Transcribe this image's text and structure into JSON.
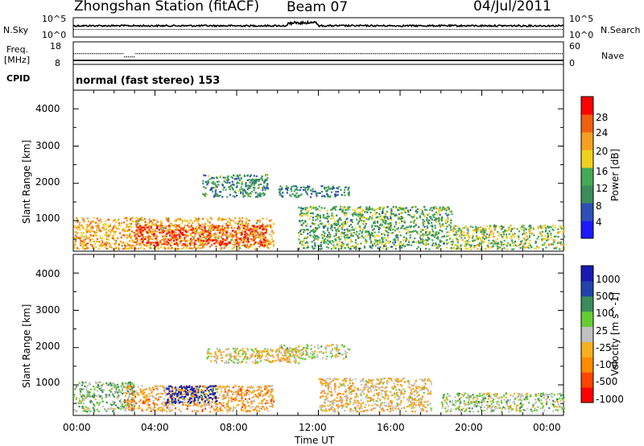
{
  "header": {
    "station": "Zhongshan Station (fitACF)",
    "beam": "Beam 07",
    "date": "04/Jul/2011"
  },
  "nsky_panel": {
    "left_label": "N.Sky",
    "right_label": "N.Search",
    "tick_top": "10^5",
    "tick_bottom": "10^0"
  },
  "freq_panel": {
    "left_label_1": "Freq.",
    "left_label_2": "[MHz]",
    "right_label": "Nave",
    "tick_left_top": "18",
    "tick_left_bottom": "8",
    "tick_right_top": "60",
    "tick_right_bottom": "0"
  },
  "cpid_panel": {
    "label": "CPID",
    "mode": "normal (fast stereo) 153"
  },
  "x_axis": {
    "label": "Time UT",
    "ticks": [
      "00:00",
      "04:00",
      "08:00",
      "12:00",
      "16:00",
      "20:00",
      "00:00"
    ]
  },
  "chart_data": [
    {
      "type": "heatmap",
      "title": "",
      "xlabel": "Time UT",
      "ylabel": "Slant Range [km]",
      "ylim": [
        180,
        4500
      ],
      "xlim": [
        "00:00",
        "24:00"
      ],
      "yticks": [
        "1000",
        "2000",
        "3000",
        "4000"
      ],
      "colorbar": {
        "label": "Power [dB]",
        "ticks": [
          "28",
          "24",
          "20",
          "16",
          "12",
          "8",
          "4"
        ],
        "range": [
          0,
          30
        ],
        "colors": [
          "#1a1aff",
          "#2f4fb8",
          "#3c8c5a",
          "#44aa55",
          "#f0d020",
          "#f5a020",
          "#f06010",
          "#ff0000"
        ]
      },
      "regions": [
        {
          "t": [
            0.0,
            9.8
          ],
          "range_km": [
            250,
            1100
          ],
          "value": 20
        },
        {
          "t": [
            3.0,
            9.5
          ],
          "range_km": [
            350,
            900
          ],
          "value": 26
        },
        {
          "t": [
            6.3,
            9.5
          ],
          "range_km": [
            1650,
            2250
          ],
          "value": 10
        },
        {
          "t": [
            10.0,
            13.5
          ],
          "range_km": [
            1650,
            1950
          ],
          "value": 9
        },
        {
          "t": [
            11.0,
            18.5
          ],
          "range_km": [
            250,
            1400
          ],
          "value": 12
        },
        {
          "t": [
            18.5,
            24.0
          ],
          "range_km": [
            250,
            900
          ],
          "value": 15
        }
      ]
    },
    {
      "type": "heatmap",
      "title": "",
      "xlabel": "Time UT",
      "ylabel": "Slant Range [km]",
      "ylim": [
        180,
        4500
      ],
      "xlim": [
        "00:00",
        "24:00"
      ],
      "yticks": [
        "1000",
        "2000",
        "3000",
        "4000"
      ],
      "colorbar": {
        "label": "Velocity [m s^-1]",
        "ticks": [
          "1000",
          "500",
          "100",
          "25",
          "-25",
          "-100",
          "-500",
          "-1000"
        ],
        "range": [
          -1000,
          1000
        ],
        "colors": [
          "#ff0000",
          "#ff4500",
          "#ff8c00",
          "#f5b020",
          "#c0c0c0",
          "#66cc33",
          "#3a8c5a",
          "#2244aa",
          "#1a1ab0"
        ]
      },
      "regions": [
        {
          "t": [
            0.0,
            3.0
          ],
          "range_km": [
            300,
            1100
          ],
          "value": 200
        },
        {
          "t": [
            2.5,
            9.8
          ],
          "range_km": [
            300,
            1000
          ],
          "value": -300
        },
        {
          "t": [
            4.5,
            7.0
          ],
          "range_km": [
            500,
            1000
          ],
          "value": 800
        },
        {
          "t": [
            10.0,
            13.5
          ],
          "range_km": [
            1700,
            2100
          ],
          "value": 0
        },
        {
          "t": [
            6.5,
            11.0
          ],
          "range_km": [
            1600,
            2000
          ],
          "value": -80
        },
        {
          "t": [
            12.0,
            17.5
          ],
          "range_km": [
            300,
            1200
          ],
          "value": -200
        },
        {
          "t": [
            18.0,
            24.0
          ],
          "range_km": [
            300,
            800
          ],
          "value": 100
        }
      ]
    }
  ]
}
